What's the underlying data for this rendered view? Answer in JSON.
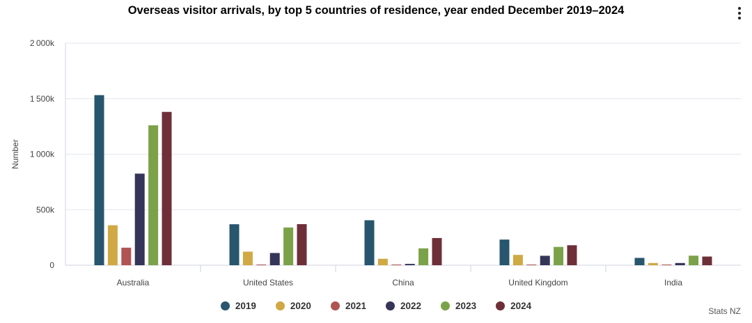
{
  "title": "Overseas visitor arrivals, by top 5 countries of residence, year ended December 2019–2024",
  "menu_icon": "hamburger-menu-icon",
  "credits": "Stats NZ",
  "chart_data": {
    "type": "bar",
    "title": "Overseas visitor arrivals, by top 5 countries of residence, year ended December 2019–2024",
    "xlabel": "",
    "ylabel": "Number",
    "categories": [
      "Australia",
      "United States",
      "China",
      "United Kingdom",
      "India"
    ],
    "ylim": [
      0,
      2000000
    ],
    "yticks": [
      0,
      500000,
      1000000,
      1500000,
      2000000
    ],
    "ytick_labels": [
      "0",
      "500k",
      "1 000k",
      "1 500k",
      "2 000k"
    ],
    "grid": true,
    "legend_position": "bottom",
    "series": [
      {
        "name": "2019",
        "color": "#27566e",
        "values": [
          1532000,
          369000,
          405000,
          231000,
          66000
        ]
      },
      {
        "name": "2020",
        "color": "#d0a944",
        "values": [
          360000,
          122000,
          58000,
          93000,
          20000
        ]
      },
      {
        "name": "2021",
        "color": "#b05454",
        "values": [
          158000,
          1000,
          1000,
          1000,
          1000
        ]
      },
      {
        "name": "2022",
        "color": "#353459",
        "values": [
          825000,
          110000,
          12000,
          85000,
          20000
        ]
      },
      {
        "name": "2023",
        "color": "#7ca249",
        "values": [
          1260000,
          340000,
          152000,
          165000,
          86000
        ]
      },
      {
        "name": "2024",
        "color": "#6e2f39",
        "values": [
          1381000,
          370000,
          245000,
          180000,
          78000
        ]
      }
    ]
  }
}
